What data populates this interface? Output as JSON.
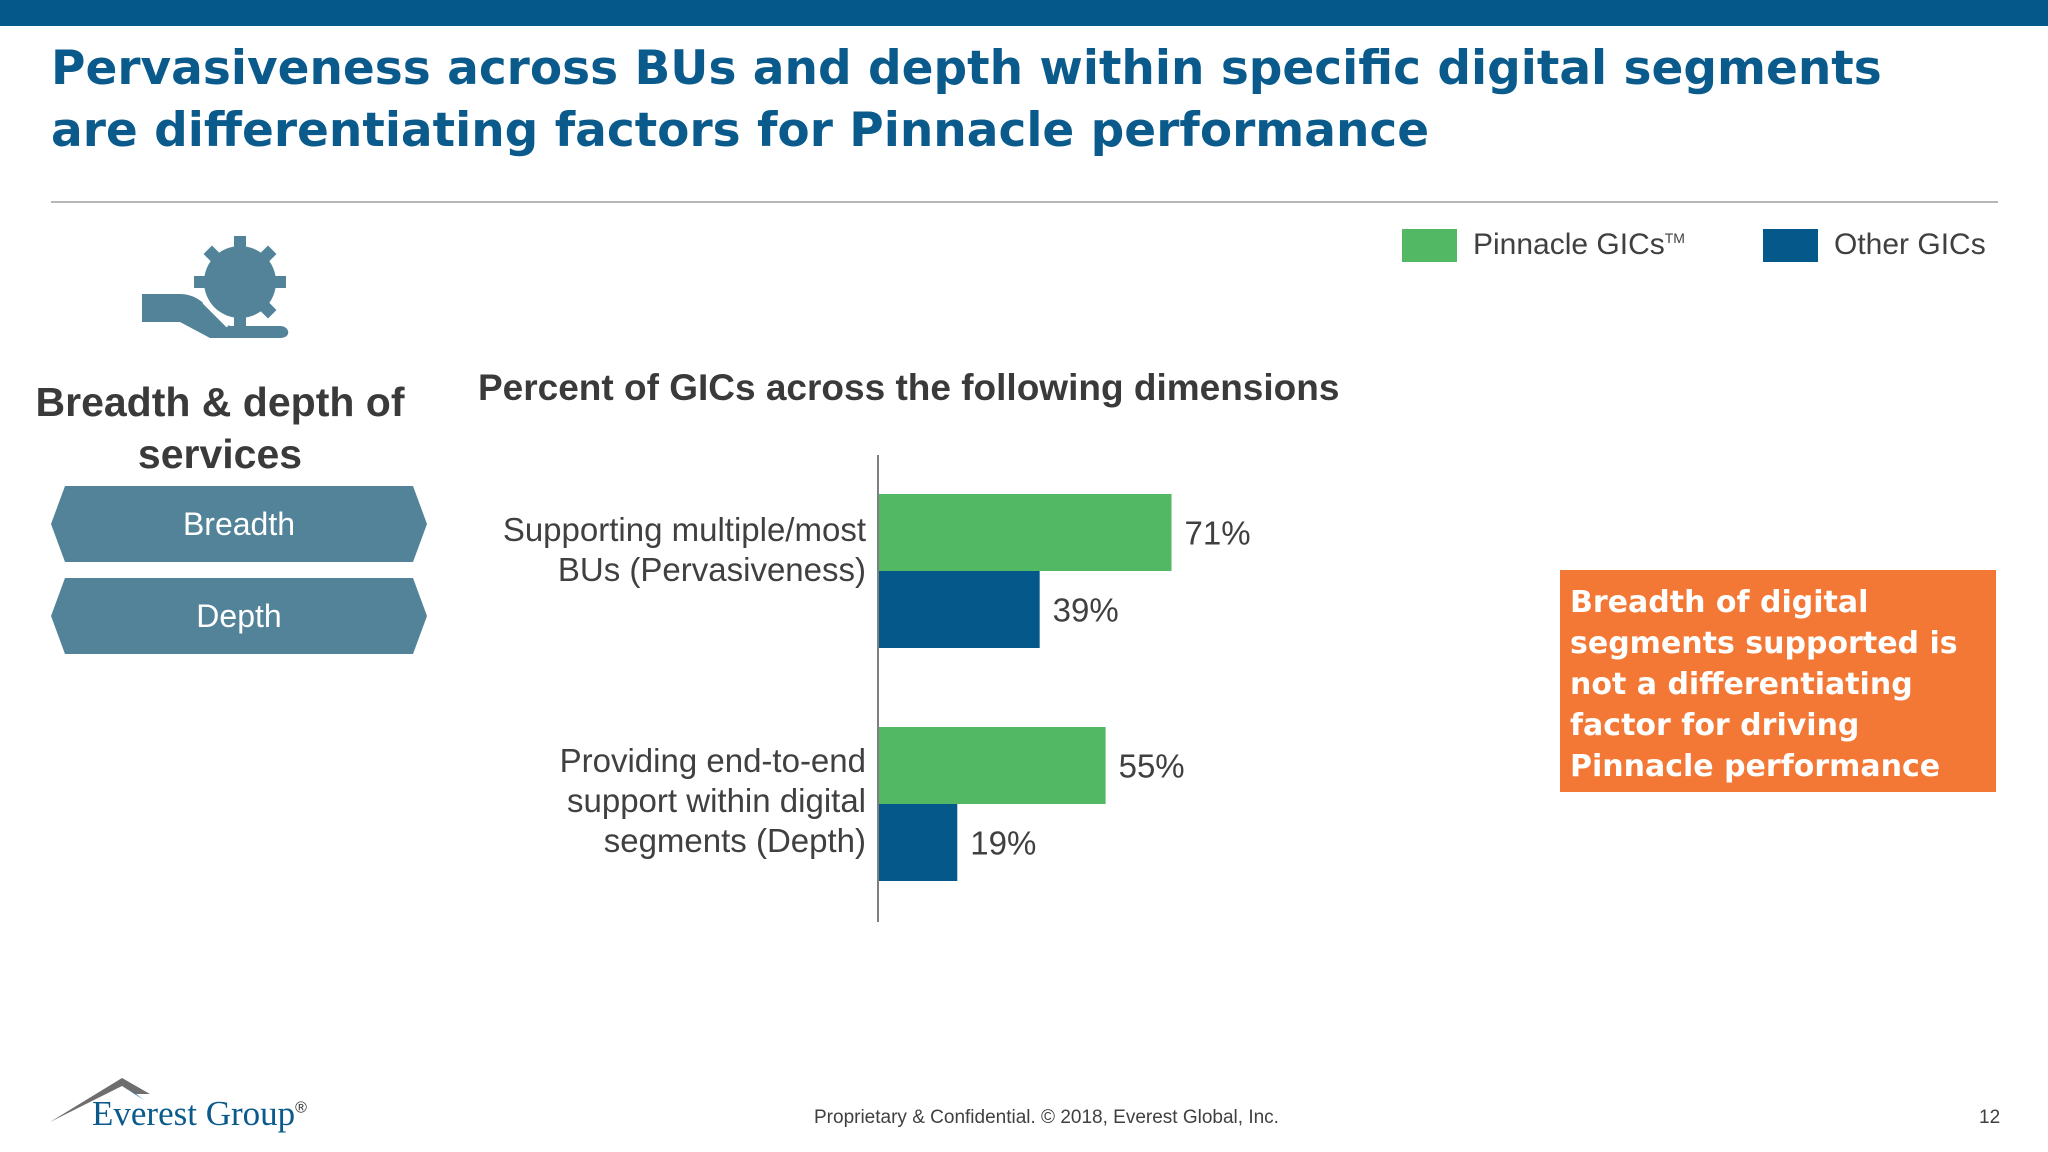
{
  "slide": {
    "title": "Pervasiveness across BUs and depth within specific digital segments are differentiating factors for Pinnacle performance",
    "side_heading": "Breadth & depth of services",
    "chevrons": [
      "Breadth",
      "Depth"
    ],
    "callout": "Breadth of digital segments supported is not a differentiating factor for driving Pinnacle performance",
    "footer": "Proprietary & Confidential. © 2018, Everest Global, Inc.",
    "page_number": "12",
    "logo_text": "Everest Group",
    "logo_mark": "®",
    "service_icon": "gear-hand-icon"
  },
  "legend": {
    "items": [
      {
        "label": "Pinnacle GICs",
        "mark": "TM",
        "color": "#52b864"
      },
      {
        "label": "Other GICs",
        "color": "#05598a"
      }
    ]
  },
  "chart_data": {
    "type": "bar",
    "orientation": "horizontal",
    "title": "Percent of GICs across the following dimensions",
    "categories": [
      "Supporting multiple/most BUs (Pervasiveness)",
      "Providing end-to-end support within digital segments (Depth)"
    ],
    "series": [
      {
        "name": "Pinnacle GICs",
        "color": "#52b864",
        "values": [
          71,
          55
        ],
        "labels": [
          "71%",
          "55%"
        ]
      },
      {
        "name": "Other GICs",
        "color": "#05598a",
        "values": [
          39,
          19
        ],
        "labels": [
          "39%",
          "19%"
        ]
      }
    ],
    "xlim": [
      0,
      100
    ],
    "grid": false,
    "legend_position": "top-right"
  }
}
